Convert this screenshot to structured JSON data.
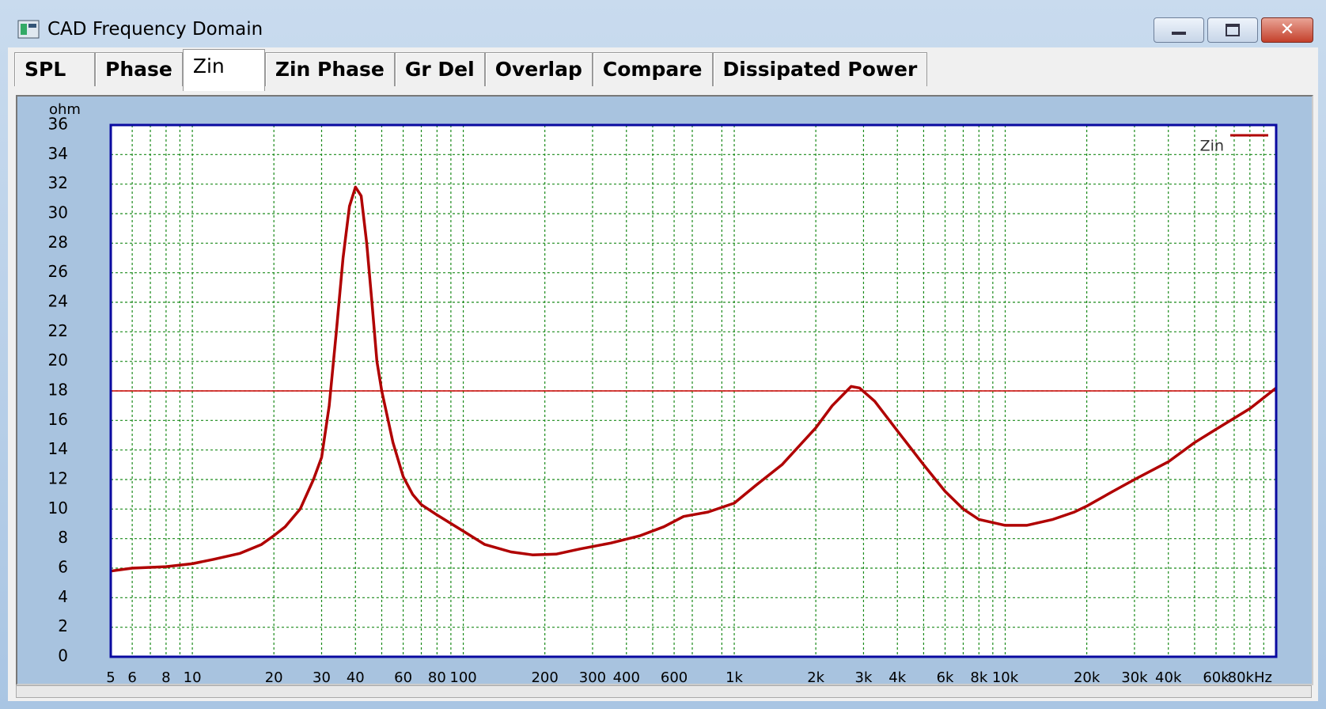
{
  "window": {
    "title": "CAD Frequency Domain",
    "tabs": [
      "SPL",
      "Phase",
      "Zin",
      "Zin Phase",
      "Gr Del",
      "Overlap",
      "Compare",
      "Dissipated Power"
    ],
    "selected_tab": 2
  },
  "chart_data": {
    "type": "line",
    "y_label": "ohm",
    "log_x": true,
    "grid": true,
    "legend": "top-right",
    "xlim": [
      5,
      100000
    ],
    "ylim": [
      0,
      36
    ],
    "yticks": [
      0,
      2,
      4,
      6,
      8,
      10,
      12,
      14,
      16,
      18,
      20,
      22,
      24,
      26,
      28,
      30,
      32,
      34,
      36
    ],
    "xticks": [
      5,
      6,
      8,
      10,
      20,
      30,
      40,
      60,
      80,
      100,
      200,
      300,
      400,
      600,
      {
        "value": 1000,
        "label": "1k"
      },
      {
        "value": 2000,
        "label": "2k"
      },
      {
        "value": 3000,
        "label": "3k"
      },
      {
        "value": 4000,
        "label": "4k"
      },
      {
        "value": 6000,
        "label": "6k"
      },
      {
        "value": 8000,
        "label": "8k"
      },
      {
        "value": 10000,
        "label": "10k"
      },
      {
        "value": 20000,
        "label": "20k"
      },
      {
        "value": 30000,
        "label": "30k"
      },
      {
        "value": 40000,
        "label": "40k"
      },
      {
        "value": 60000,
        "label": "60k"
      },
      {
        "value": 80000,
        "label": "80kHz"
      }
    ],
    "xminorticks": [
      7,
      9,
      50,
      70,
      90,
      500,
      700,
      900,
      5000,
      7000,
      9000,
      50000,
      70000,
      90000
    ],
    "reference_line": 18,
    "reference_color": "#cc0000",
    "x": [
      5,
      6,
      8,
      10,
      12,
      15,
      18,
      20,
      22,
      25,
      28,
      30,
      32,
      34,
      36,
      38,
      40,
      42,
      44,
      46,
      48,
      50,
      55,
      60,
      65,
      70,
      80,
      100,
      120,
      150,
      180,
      220,
      270,
      350,
      450,
      550,
      650,
      800,
      1000,
      1200,
      1500,
      2000,
      2300,
      2700,
      2900,
      3300,
      4000,
      5000,
      6000,
      7000,
      8000,
      10000,
      12000,
      15000,
      18000,
      20000,
      25000,
      30000,
      40000,
      50000,
      60000,
      80000,
      100000
    ],
    "series": [
      {
        "name": "Zin",
        "color": "#b00000",
        "values": [
          5.8,
          6.0,
          6.1,
          6.3,
          6.6,
          7.0,
          7.6,
          8.2,
          8.8,
          10,
          12,
          13.5,
          17,
          22,
          27,
          30.5,
          31.8,
          31.2,
          28,
          24,
          20,
          18,
          14.5,
          12.2,
          11,
          10.3,
          9.6,
          8.5,
          7.6,
          7.1,
          6.9,
          6.95,
          7.3,
          7.7,
          8.2,
          8.8,
          9.5,
          9.8,
          10.4,
          11.6,
          13,
          15.5,
          17,
          18.3,
          18.2,
          17.3,
          15.3,
          13,
          11.2,
          10,
          9.3,
          8.9,
          8.9,
          9.3,
          9.8,
          10.2,
          11.2,
          12,
          13.2,
          14.5,
          15.4,
          16.8,
          18.2
        ]
      }
    ]
  }
}
